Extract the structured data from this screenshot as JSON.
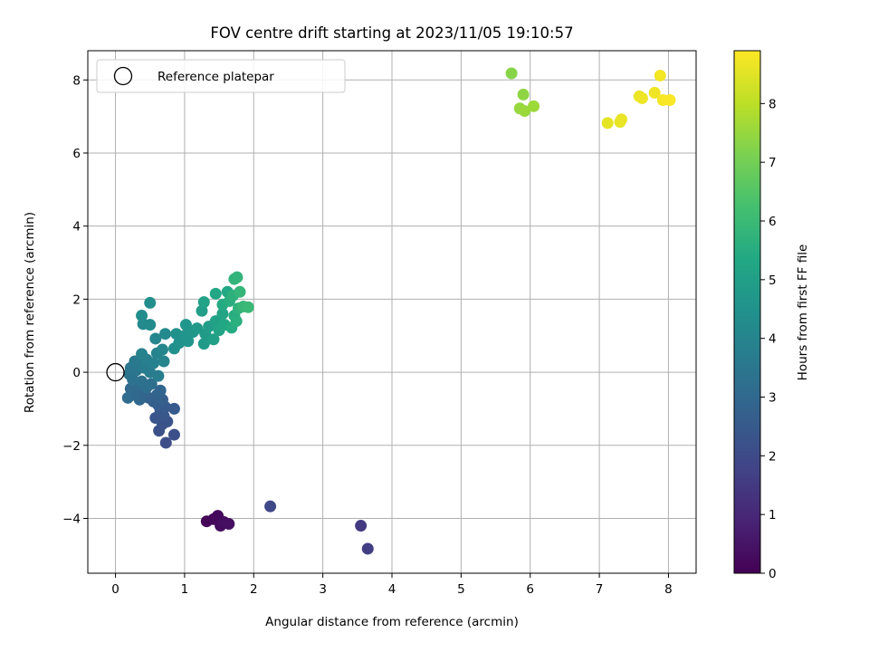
{
  "chart_data": {
    "type": "scatter",
    "title": "FOV centre drift starting at 2023/11/05 19:10:57",
    "xlabel": "Angular distance from reference (arcmin)",
    "ylabel": "Rotation from reference (arcmin)",
    "xlim": [
      -0.4,
      8.4
    ],
    "ylim": [
      -5.5,
      8.8
    ],
    "xticks": [
      0,
      1,
      2,
      3,
      4,
      5,
      6,
      7,
      8
    ],
    "yticks": [
      -4,
      -2,
      0,
      2,
      4,
      6,
      8
    ],
    "grid": true,
    "legend": {
      "placement": "upper-left",
      "entries": [
        "Reference platepar"
      ]
    },
    "reference_point": {
      "x": 0,
      "y": 0
    },
    "colorbar": {
      "label": "Hours from first FF file",
      "colormap": "viridis",
      "range": [
        0,
        8.9
      ],
      "ticks": [
        0,
        1,
        2,
        3,
        4,
        5,
        6,
        7,
        8
      ]
    },
    "points": [
      {
        "x": 1.32,
        "y": -4.08,
        "h": 0.1
      },
      {
        "x": 1.42,
        "y": -4.02,
        "h": 0.15
      },
      {
        "x": 1.48,
        "y": -3.93,
        "h": 0.2
      },
      {
        "x": 1.52,
        "y": -4.2,
        "h": 0.25
      },
      {
        "x": 1.57,
        "y": -4.1,
        "h": 0.3
      },
      {
        "x": 1.64,
        "y": -4.15,
        "h": 0.35
      },
      {
        "x": 3.55,
        "y": -4.2,
        "h": 1.5
      },
      {
        "x": 3.65,
        "y": -4.83,
        "h": 1.6
      },
      {
        "x": 2.24,
        "y": -3.67,
        "h": 1.9
      },
      {
        "x": 0.73,
        "y": -1.93,
        "h": 2.1
      },
      {
        "x": 0.85,
        "y": -1.71,
        "h": 2.15
      },
      {
        "x": 0.63,
        "y": -1.6,
        "h": 2.2
      },
      {
        "x": 0.68,
        "y": -1.42,
        "h": 2.25
      },
      {
        "x": 0.75,
        "y": -1.35,
        "h": 2.3
      },
      {
        "x": 0.58,
        "y": -1.25,
        "h": 2.35
      },
      {
        "x": 0.7,
        "y": -1.2,
        "h": 2.4
      },
      {
        "x": 0.65,
        "y": -1.05,
        "h": 2.45
      },
      {
        "x": 0.85,
        "y": -1.0,
        "h": 2.5
      },
      {
        "x": 0.72,
        "y": -0.95,
        "h": 2.55
      },
      {
        "x": 0.62,
        "y": -0.9,
        "h": 2.6
      },
      {
        "x": 0.55,
        "y": -0.8,
        "h": 2.65
      },
      {
        "x": 0.68,
        "y": -0.75,
        "h": 2.7
      },
      {
        "x": 0.48,
        "y": -0.7,
        "h": 2.75
      },
      {
        "x": 0.6,
        "y": -0.62,
        "h": 2.8
      },
      {
        "x": 0.42,
        "y": -0.55,
        "h": 2.85
      },
      {
        "x": 0.65,
        "y": -0.5,
        "h": 2.9
      },
      {
        "x": 0.35,
        "y": -0.75,
        "h": 2.95
      },
      {
        "x": 0.28,
        "y": -0.62,
        "h": 3.0
      },
      {
        "x": 0.22,
        "y": -0.45,
        "h": 3.05
      },
      {
        "x": 0.32,
        "y": -0.38,
        "h": 3.1
      },
      {
        "x": 0.18,
        "y": -0.7,
        "h": 3.15
      },
      {
        "x": 0.45,
        "y": -0.42,
        "h": 3.2
      },
      {
        "x": 0.52,
        "y": -0.32,
        "h": 3.25
      },
      {
        "x": 0.38,
        "y": -0.25,
        "h": 3.3
      },
      {
        "x": 0.25,
        "y": -0.2,
        "h": 3.35
      },
      {
        "x": 0.2,
        "y": -0.05,
        "h": 3.4
      },
      {
        "x": 0.3,
        "y": 0.05,
        "h": 3.45
      },
      {
        "x": 0.22,
        "y": 0.12,
        "h": 3.5
      },
      {
        "x": 0.35,
        "y": 0.2,
        "h": 3.55
      },
      {
        "x": 0.28,
        "y": 0.3,
        "h": 3.6
      },
      {
        "x": 0.42,
        "y": 0.12,
        "h": 3.65
      },
      {
        "x": 0.5,
        "y": 0.0,
        "h": 3.7
      },
      {
        "x": 0.62,
        "y": -0.1,
        "h": 3.75
      },
      {
        "x": 0.45,
        "y": 0.35,
        "h": 3.8
      },
      {
        "x": 0.55,
        "y": 0.25,
        "h": 3.85
      },
      {
        "x": 0.38,
        "y": 0.5,
        "h": 3.9
      },
      {
        "x": 0.6,
        "y": 0.52,
        "h": 3.95
      },
      {
        "x": 0.7,
        "y": 0.3,
        "h": 4.0
      },
      {
        "x": 0.68,
        "y": 0.62,
        "h": 4.05
      },
      {
        "x": 0.58,
        "y": 0.92,
        "h": 4.1
      },
      {
        "x": 0.72,
        "y": 1.05,
        "h": 4.15
      },
      {
        "x": 0.4,
        "y": 1.32,
        "h": 4.2
      },
      {
        "x": 0.5,
        "y": 1.3,
        "h": 4.25
      },
      {
        "x": 0.38,
        "y": 1.55,
        "h": 4.3
      },
      {
        "x": 0.5,
        "y": 1.9,
        "h": 4.35
      },
      {
        "x": 0.85,
        "y": 0.65,
        "h": 4.4
      },
      {
        "x": 0.88,
        "y": 1.05,
        "h": 4.45
      },
      {
        "x": 0.92,
        "y": 0.8,
        "h": 4.5
      },
      {
        "x": 1.0,
        "y": 1.0,
        "h": 4.55
      },
      {
        "x": 1.05,
        "y": 0.85,
        "h": 4.6
      },
      {
        "x": 1.02,
        "y": 1.3,
        "h": 4.65
      },
      {
        "x": 1.12,
        "y": 1.1,
        "h": 4.7
      },
      {
        "x": 1.18,
        "y": 1.2,
        "h": 4.75
      },
      {
        "x": 1.28,
        "y": 0.78,
        "h": 4.8
      },
      {
        "x": 1.3,
        "y": 1.05,
        "h": 4.85
      },
      {
        "x": 1.25,
        "y": 1.68,
        "h": 4.9
      },
      {
        "x": 1.35,
        "y": 1.25,
        "h": 4.95
      },
      {
        "x": 1.42,
        "y": 0.9,
        "h": 5.0
      },
      {
        "x": 1.45,
        "y": 1.4,
        "h": 5.05
      },
      {
        "x": 1.28,
        "y": 1.92,
        "h": 5.1
      },
      {
        "x": 1.5,
        "y": 1.15,
        "h": 5.15
      },
      {
        "x": 1.55,
        "y": 1.6,
        "h": 5.2
      },
      {
        "x": 1.45,
        "y": 2.15,
        "h": 5.25
      },
      {
        "x": 1.58,
        "y": 1.3,
        "h": 5.3
      },
      {
        "x": 1.62,
        "y": 2.2,
        "h": 5.35
      },
      {
        "x": 1.55,
        "y": 1.85,
        "h": 5.4
      },
      {
        "x": 1.68,
        "y": 1.22,
        "h": 5.45
      },
      {
        "x": 1.72,
        "y": 1.55,
        "h": 5.5
      },
      {
        "x": 1.65,
        "y": 1.95,
        "h": 5.55
      },
      {
        "x": 1.75,
        "y": 1.4,
        "h": 5.6
      },
      {
        "x": 1.7,
        "y": 2.1,
        "h": 5.65
      },
      {
        "x": 1.78,
        "y": 1.75,
        "h": 5.7
      },
      {
        "x": 1.72,
        "y": 2.55,
        "h": 5.75
      },
      {
        "x": 1.76,
        "y": 2.6,
        "h": 5.8
      },
      {
        "x": 1.8,
        "y": 2.2,
        "h": 5.85
      },
      {
        "x": 1.85,
        "y": 1.8,
        "h": 5.9
      },
      {
        "x": 1.92,
        "y": 1.78,
        "h": 5.95
      },
      {
        "x": 5.73,
        "y": 8.18,
        "h": 7.3
      },
      {
        "x": 5.9,
        "y": 7.6,
        "h": 7.4
      },
      {
        "x": 5.85,
        "y": 7.22,
        "h": 7.5
      },
      {
        "x": 5.92,
        "y": 7.15,
        "h": 7.55
      },
      {
        "x": 6.05,
        "y": 7.28,
        "h": 7.6
      },
      {
        "x": 7.12,
        "y": 6.82,
        "h": 8.55
      },
      {
        "x": 7.3,
        "y": 6.85,
        "h": 8.6
      },
      {
        "x": 7.32,
        "y": 6.92,
        "h": 8.62
      },
      {
        "x": 7.58,
        "y": 7.55,
        "h": 8.65
      },
      {
        "x": 7.62,
        "y": 7.5,
        "h": 8.68
      },
      {
        "x": 7.8,
        "y": 7.65,
        "h": 8.7
      },
      {
        "x": 7.88,
        "y": 8.12,
        "h": 8.75
      },
      {
        "x": 7.92,
        "y": 7.45,
        "h": 8.8
      },
      {
        "x": 8.02,
        "y": 7.45,
        "h": 8.85
      }
    ]
  }
}
